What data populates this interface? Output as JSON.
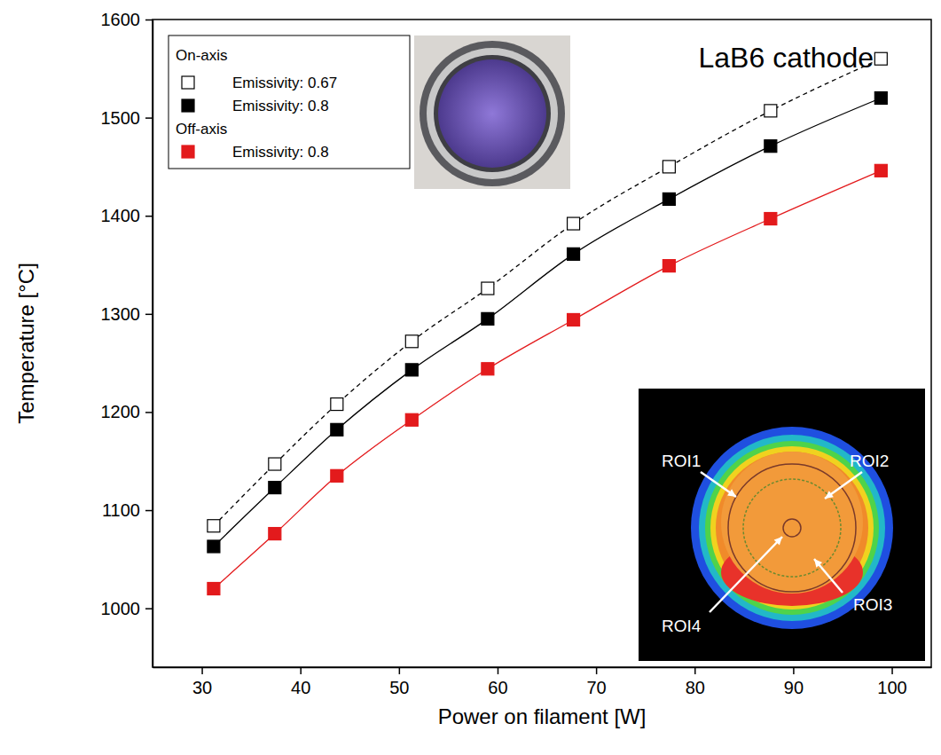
{
  "chart_data": {
    "type": "line",
    "x_label": "Power on filament [W]",
    "y_label": "Temperature [°C]",
    "x": [
      31.2,
      37.4,
      43.7,
      51.3,
      59.0,
      67.7,
      77.4,
      87.7,
      98.9
    ],
    "series": [
      {
        "name": "Emissivity: 0.67",
        "group": "On-axis",
        "color": "#000000",
        "marker": "square-open",
        "line_style": "dashed",
        "values": [
          1084,
          1147,
          1208,
          1272,
          1326,
          1392,
          1450,
          1507,
          1560
        ]
      },
      {
        "name": "Emissivity: 0.8",
        "group": "On-axis",
        "color": "#000000",
        "marker": "square",
        "line_style": "solid",
        "values": [
          1063,
          1123,
          1182,
          1243,
          1295,
          1361,
          1417,
          1471,
          1520
        ]
      },
      {
        "name": "Emissivity: 0.8",
        "group": "Off-axis",
        "color": "#e31a1c",
        "marker": "square",
        "line_style": "solid",
        "values": [
          1020,
          1076,
          1135,
          1192,
          1244,
          1294,
          1349,
          1397,
          1446
        ]
      }
    ],
    "xlim": [
      25,
      104
    ],
    "xticks": [
      30,
      40,
      50,
      60,
      70,
      80,
      90,
      100
    ],
    "ylim": [
      940,
      1600
    ],
    "yticks": [
      1000,
      1100,
      1200,
      1300,
      1400,
      1500,
      1600
    ],
    "grid": false,
    "legend": "upper left",
    "annotations": [
      "LaB6 cathode",
      "ROI1",
      "ROI2",
      "ROI3",
      "ROI4"
    ]
  }
}
